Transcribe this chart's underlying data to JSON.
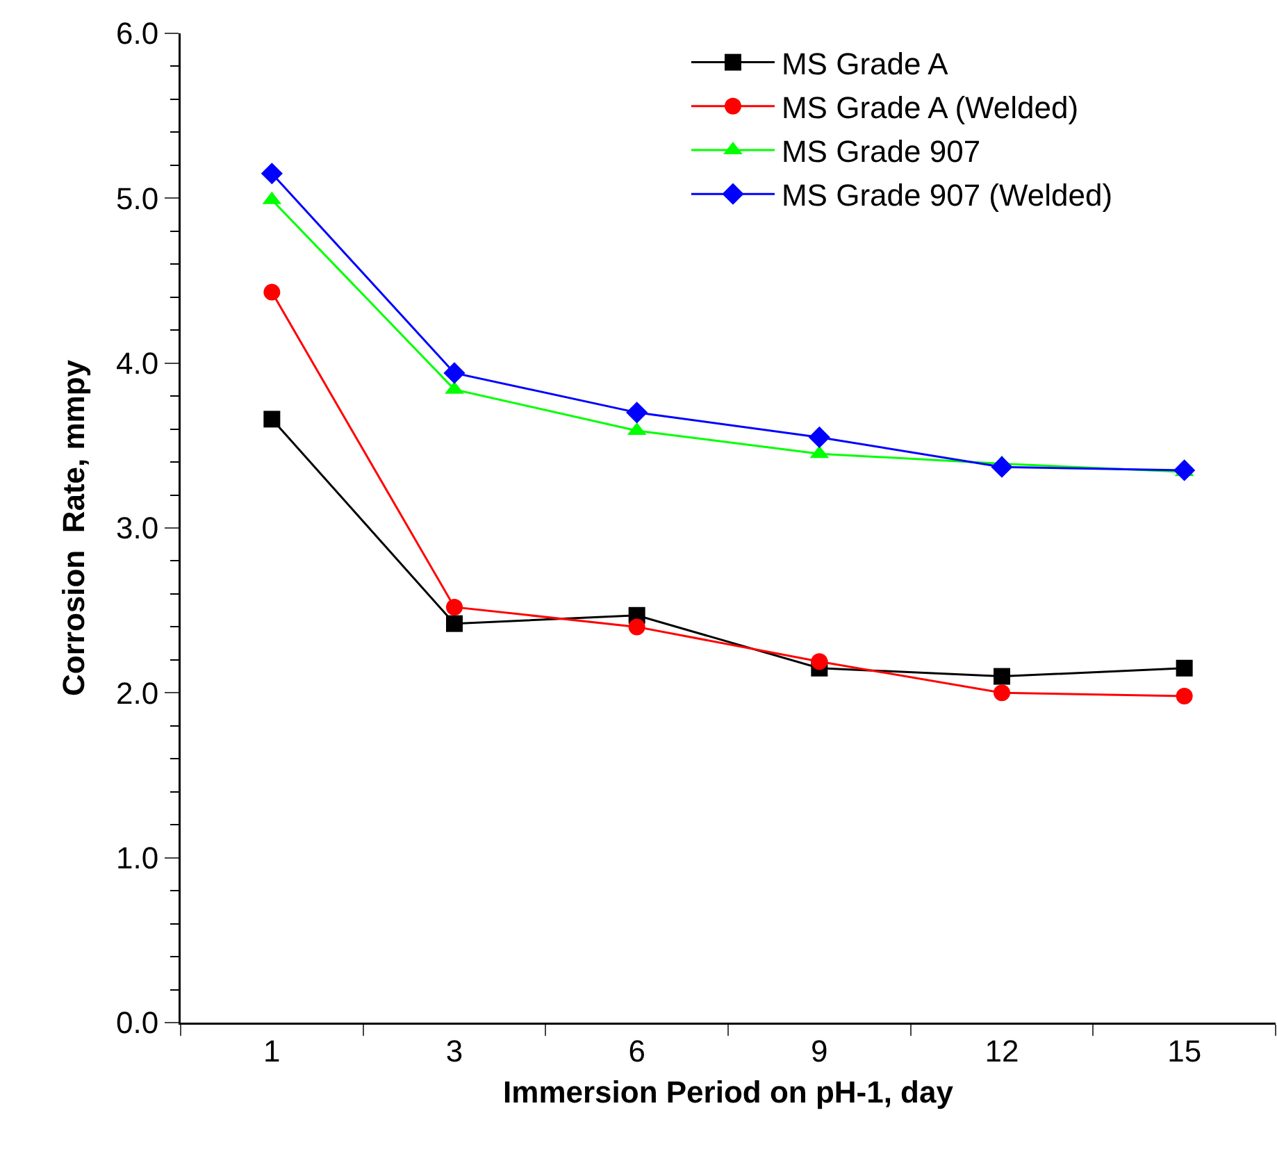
{
  "chart_data": {
    "type": "line",
    "xlabel": "Immersion Period on pH-1, day",
    "ylabel": "Corrosion  Rate, mmpy",
    "categories": [
      "1",
      "3",
      "6",
      "9",
      "12",
      "15"
    ],
    "ylim": [
      0,
      6
    ],
    "yticks": [
      {
        "value": 0,
        "label": "0.0"
      },
      {
        "value": 1,
        "label": "1.0"
      },
      {
        "value": 2,
        "label": "2.0"
      },
      {
        "value": 3,
        "label": "3.0"
      },
      {
        "value": 4,
        "label": "4.0"
      },
      {
        "value": 5,
        "label": "5.0"
      },
      {
        "value": 6,
        "label": "6.0"
      }
    ],
    "grid": false,
    "legend": "top right",
    "series": [
      {
        "name": "MS Grade A",
        "color": "#000000",
        "marker": "square",
        "values": [
          3.66,
          2.42,
          2.47,
          2.15,
          2.1,
          2.15
        ]
      },
      {
        "name": "MS Grade A (Welded)",
        "color": "#ff0000",
        "marker": "circle",
        "values": [
          4.43,
          2.52,
          2.4,
          2.19,
          2.0,
          1.98
        ]
      },
      {
        "name": "MS Grade 907",
        "color": "#00ff00",
        "marker": "triangle",
        "values": [
          4.99,
          3.84,
          3.59,
          3.45,
          3.39,
          3.34
        ]
      },
      {
        "name": "MS Grade 907 (Welded)",
        "color": "#0000ff",
        "marker": "diamond",
        "values": [
          5.15,
          3.94,
          3.7,
          3.55,
          3.37,
          3.35
        ]
      }
    ]
  }
}
